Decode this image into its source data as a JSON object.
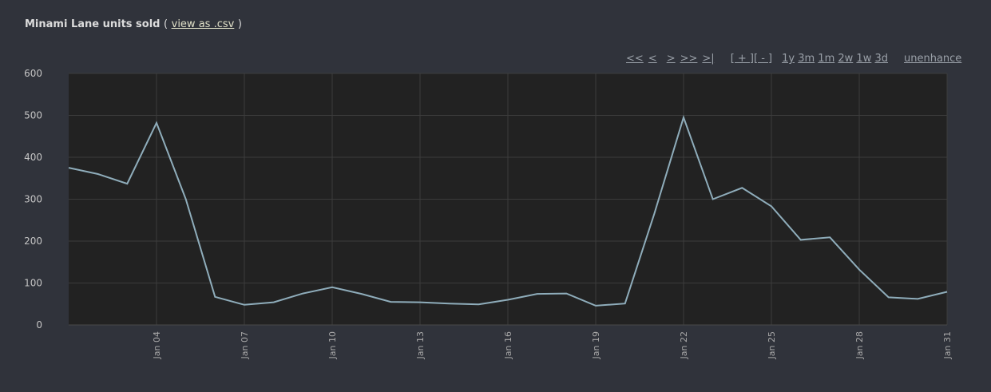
{
  "header": {
    "title": "Minami Lane units sold",
    "open_paren": "(",
    "csv_link": "view as .csv",
    "close_paren": ")"
  },
  "nav": {
    "first": "<<",
    "prev": "<",
    "next": ">",
    "next_far": ">>",
    "last": ">|",
    "zoom_in": "[ + ]",
    "zoom_out": "[ - ]",
    "range_1y": "1y",
    "range_3m": "3m",
    "range_1m": "1m",
    "range_2w": "2w",
    "range_1w": "1w",
    "range_3d": "3d",
    "unenhance": "unenhance"
  },
  "colors": {
    "page_bg": "#30333b",
    "plot_bg": "#222222",
    "grid": "#3c3c3c",
    "line": "#8fadbb"
  },
  "chart_data": {
    "type": "line",
    "title": "Minami Lane units sold",
    "xlabel": "",
    "ylabel": "",
    "ylim": [
      0,
      600
    ],
    "yticks": [
      0,
      100,
      200,
      300,
      400,
      500,
      600
    ],
    "x_range": [
      "Jan 01",
      "Jan 31"
    ],
    "x_ticks": [
      "Jan 04",
      "Jan 07",
      "Jan 10",
      "Jan 13",
      "Jan 16",
      "Jan 19",
      "Jan 22",
      "Jan 25",
      "Jan 28",
      "Jan 31"
    ],
    "grid": true,
    "series": [
      {
        "x": [
          "Jan 01",
          "Jan 02",
          "Jan 03",
          "Jan 04",
          "Jan 05",
          "Jan 06",
          "Jan 07",
          "Jan 08",
          "Jan 09",
          "Jan 10",
          "Jan 11",
          "Jan 12",
          "Jan 13",
          "Jan 14",
          "Jan 15",
          "Jan 16",
          "Jan 17",
          "Jan 18",
          "Jan 19",
          "Jan 20",
          "Jan 21",
          "Jan 22",
          "Jan 23",
          "Jan 24",
          "Jan 25",
          "Jan 26",
          "Jan 27",
          "Jan 28",
          "Jan 29",
          "Jan 30",
          "Jan 31"
        ],
        "values": [
          375,
          360,
          337,
          482,
          300,
          67,
          48,
          54,
          75,
          90,
          74,
          55,
          54,
          51,
          49,
          60,
          74,
          75,
          46,
          51,
          265,
          495,
          300,
          327,
          283,
          203,
          209,
          132,
          66,
          62,
          79
        ]
      }
    ]
  }
}
